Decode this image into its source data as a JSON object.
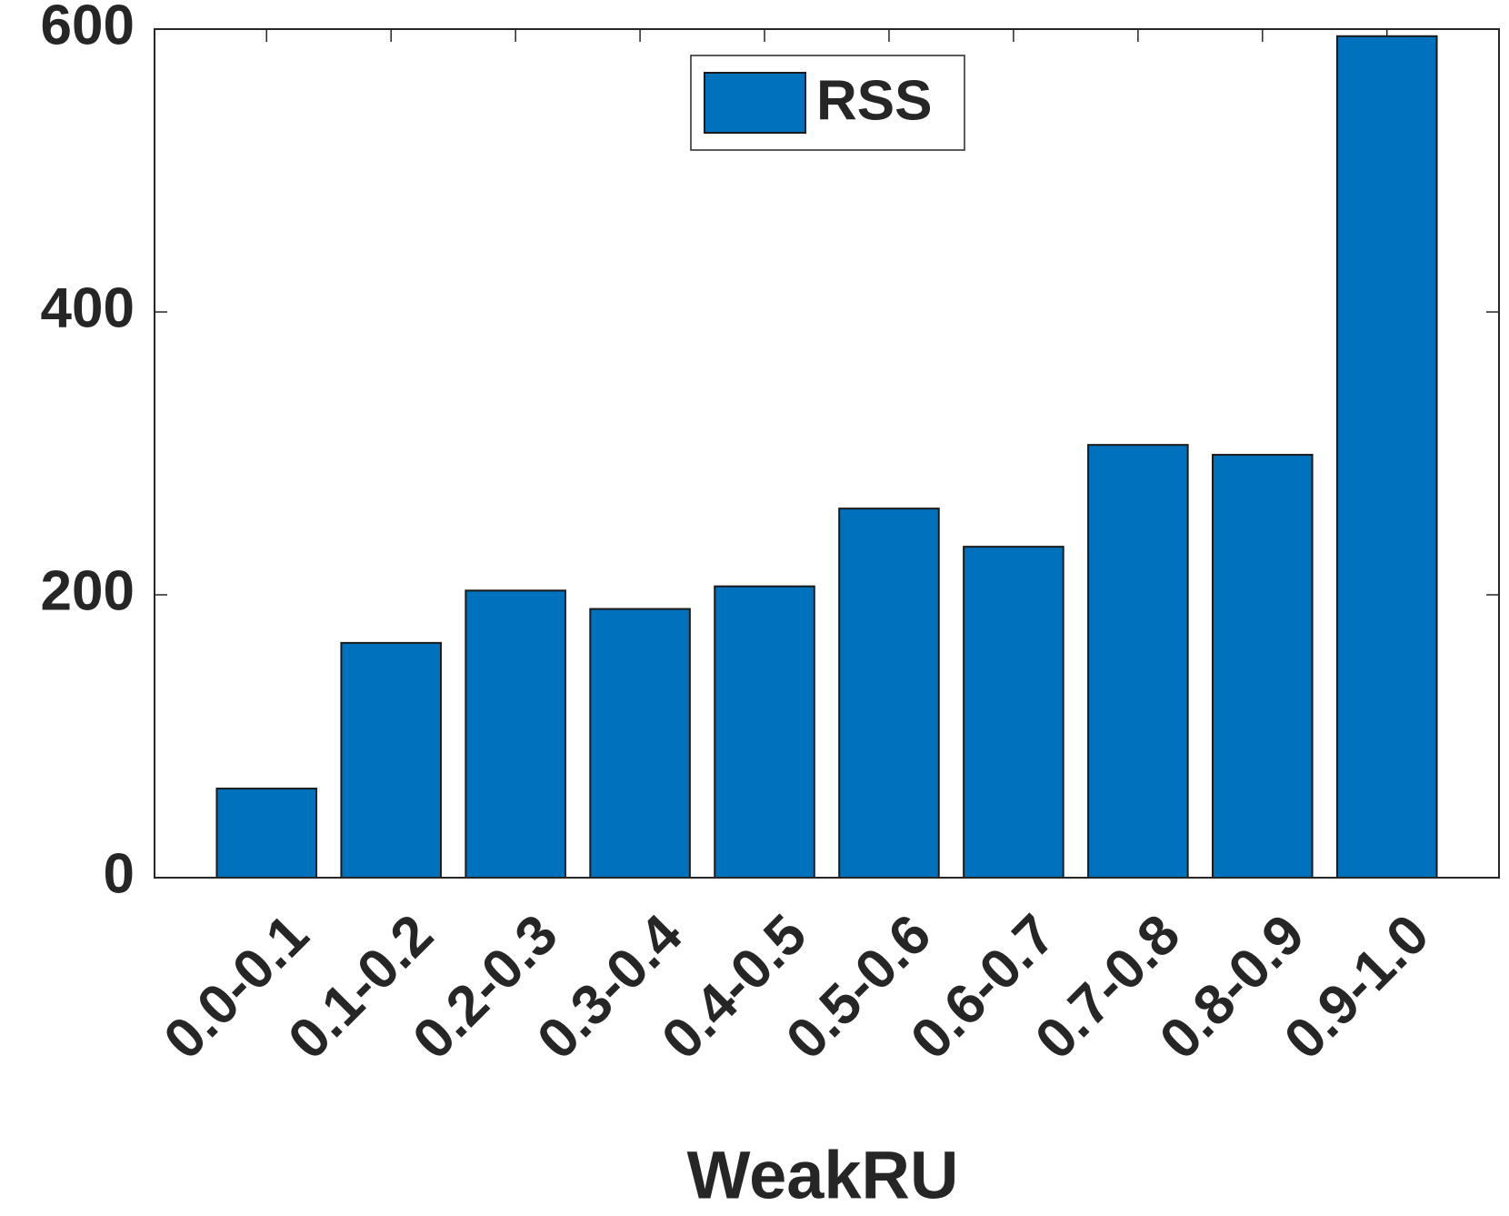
{
  "chart_data": {
    "type": "bar",
    "categories": [
      "0.0-0.1",
      "0.1-0.2",
      "0.2-0.3",
      "0.3-0.4",
      "0.4-0.5",
      "0.5-0.6",
      "0.6-0.7",
      "0.7-0.8",
      "0.8-0.9",
      "0.9-1.0"
    ],
    "series": [
      {
        "name": "RSS",
        "color": "#0072bd",
        "values": [
          63,
          166,
          203,
          190,
          206,
          261,
          234,
          306,
          299,
          595
        ]
      }
    ],
    "xlabel": "WeakRU",
    "ylim": [
      0,
      600
    ],
    "yticks": [
      0,
      200,
      400,
      600
    ],
    "legend": "top",
    "grid": false
  }
}
